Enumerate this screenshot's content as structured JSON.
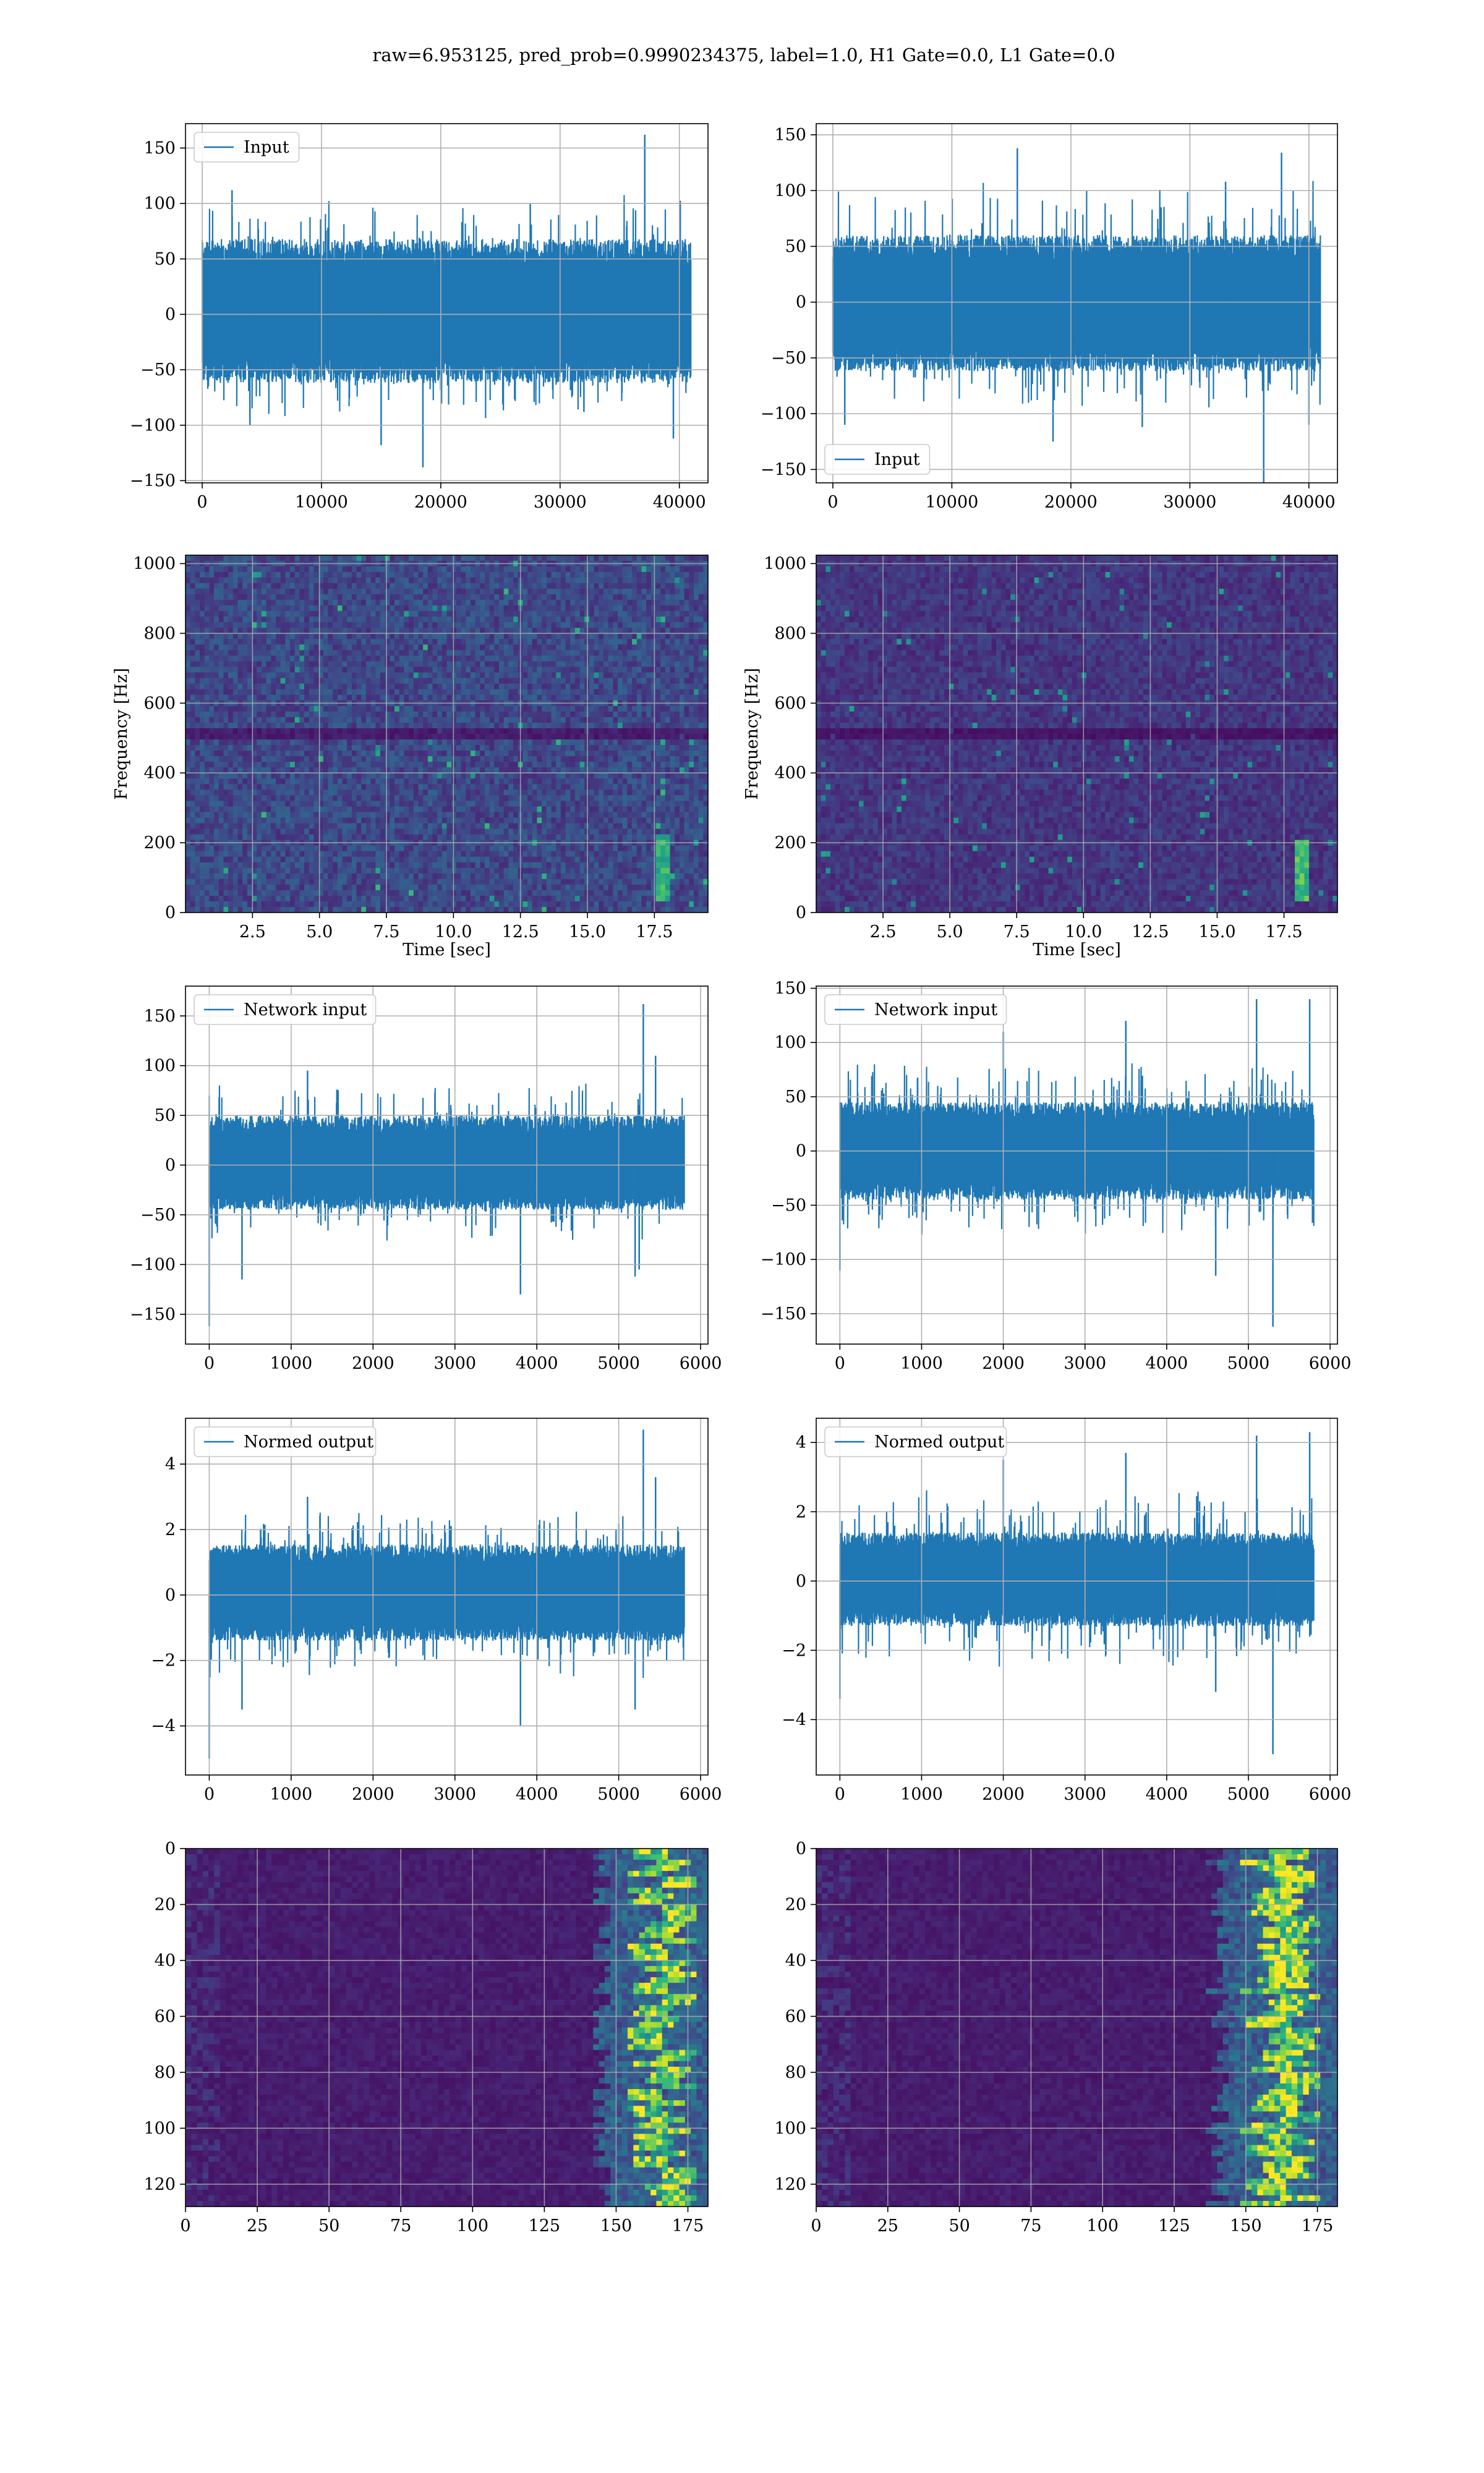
{
  "figure": {
    "title": "raw=6.953125, pred_prob=0.9990234375, label=1.0, H1 Gate=0.0, L1 Gate=0.0"
  },
  "style": {
    "line_color": "#1f77b4",
    "grid_color": "#b0b0b0",
    "colormap": "viridis",
    "axes_edge": "#000000"
  },
  "chart_data": [
    {
      "id": "r1c1",
      "type": "line",
      "title": "",
      "xlabel": "",
      "ylabel": "",
      "legend": "upper left",
      "grid": true,
      "xlim": [
        -1400,
        42400
      ],
      "ylim": [
        -152,
        172
      ],
      "xticks": [
        0,
        10000,
        20000,
        30000,
        40000
      ],
      "yticks": [
        -150,
        -100,
        -50,
        0,
        50,
        100,
        150
      ],
      "series": [
        {
          "name": "Input",
          "x_range": [
            0,
            40960
          ],
          "envelope": {
            "low": -62,
            "high": 68,
            "spike_low": -100,
            "spike_high": 112
          },
          "spikes": [
            [
              2500,
              112
            ],
            [
              4000,
              -100
            ],
            [
              15000,
              -118
            ],
            [
              18500,
              -138
            ],
            [
              27500,
              100
            ],
            [
              32000,
              -88
            ],
            [
              37100,
              162
            ],
            [
              39500,
              -112
            ]
          ]
        }
      ]
    },
    {
      "id": "r1c2",
      "type": "line",
      "title": "",
      "xlabel": "",
      "ylabel": "",
      "legend": "lower left",
      "grid": true,
      "xlim": [
        -1400,
        42400
      ],
      "ylim": [
        -162,
        160
      ],
      "xticks": [
        0,
        10000,
        20000,
        30000,
        40000
      ],
      "yticks": [
        -150,
        -100,
        -50,
        0,
        50,
        100,
        150
      ],
      "series": [
        {
          "name": "Input",
          "x_range": [
            0,
            40960
          ],
          "envelope": {
            "low": -62,
            "high": 60,
            "spike_low": -100,
            "spike_high": 115
          },
          "spikes": [
            [
              1000,
              -110
            ],
            [
              15500,
              138
            ],
            [
              18500,
              -125
            ],
            [
              26000,
              -112
            ],
            [
              33000,
              108
            ],
            [
              36200,
              -162
            ],
            [
              37700,
              134
            ],
            [
              40000,
              -110
            ]
          ]
        }
      ]
    },
    {
      "id": "r2c1",
      "type": "heatmap",
      "title": "",
      "xlabel": "Time [sec]",
      "ylabel": "Frequency [Hz]",
      "grid": true,
      "colormap": "viridis",
      "xlim": [
        0,
        19.5
      ],
      "ylim": [
        0,
        1024
      ],
      "xticks": [
        2.5,
        5.0,
        7.5,
        10.0,
        12.5,
        15.0,
        17.5
      ],
      "xtick_labels": [
        "2.5",
        "5.0",
        "7.5",
        "10.0",
        "12.5",
        "15.0",
        "17.5"
      ],
      "yticks": [
        0,
        200,
        400,
        600,
        800,
        1000
      ],
      "features": {
        "base_level": 0.12,
        "noise": 0.2,
        "dark_band_hz": [
          495,
          525
        ],
        "bright_track": {
          "t": 17.8,
          "f_range": [
            40,
            230
          ],
          "level": 0.75
        }
      }
    },
    {
      "id": "r2c2",
      "type": "heatmap",
      "title": "",
      "xlabel": "Time [sec]",
      "ylabel": "Frequency [Hz]",
      "grid": true,
      "colormap": "viridis",
      "xlim": [
        0,
        19.5
      ],
      "ylim": [
        0,
        1024
      ],
      "xticks": [
        2.5,
        5.0,
        7.5,
        10.0,
        12.5,
        15.0,
        17.5
      ],
      "xtick_labels": [
        "2.5",
        "5.0",
        "7.5",
        "10.0",
        "12.5",
        "15.0",
        "17.5"
      ],
      "yticks": [
        0,
        200,
        400,
        600,
        800,
        1000
      ],
      "features": {
        "base_level": 0.09,
        "noise": 0.14,
        "dark_band_hz": [
          495,
          525
        ],
        "bright_track": {
          "t": 18.2,
          "f_range": [
            30,
            210
          ],
          "level": 0.8
        }
      }
    },
    {
      "id": "r3c1",
      "type": "line",
      "title": "",
      "xlabel": "",
      "ylabel": "",
      "legend": "upper left",
      "grid": true,
      "xlim": [
        -290,
        6090
      ],
      "ylim": [
        -180,
        180
      ],
      "xticks": [
        0,
        1000,
        2000,
        3000,
        4000,
        5000,
        6000
      ],
      "yticks": [
        -150,
        -100,
        -50,
        0,
        50,
        100,
        150
      ],
      "series": [
        {
          "name": "Network input",
          "x_range": [
            0,
            5800
          ],
          "envelope": {
            "low": -45,
            "high": 50,
            "spike_low": -80,
            "spike_high": 85
          },
          "spikes": [
            [
              0,
              -162
            ],
            [
              400,
              -115
            ],
            [
              1200,
              95
            ],
            [
              3800,
              -130
            ],
            [
              5200,
              -112
            ],
            [
              5250,
              -105
            ],
            [
              5300,
              162
            ],
            [
              5450,
              110
            ]
          ]
        }
      ]
    },
    {
      "id": "r3c2",
      "type": "line",
      "title": "",
      "xlabel": "",
      "ylabel": "",
      "legend": "upper left",
      "grid": true,
      "xlim": [
        -290,
        6090
      ],
      "ylim": [
        -178,
        152
      ],
      "xticks": [
        0,
        1000,
        2000,
        3000,
        4000,
        5000,
        6000
      ],
      "yticks": [
        -150,
        -100,
        -50,
        0,
        50,
        100,
        150
      ],
      "series": [
        {
          "name": "Network input",
          "x_range": [
            0,
            5800
          ],
          "envelope": {
            "low": -45,
            "high": 45,
            "spike_low": -80,
            "spike_high": 85
          },
          "spikes": [
            [
              0,
              -110
            ],
            [
              2000,
              110
            ],
            [
              3500,
              120
            ],
            [
              4600,
              -115
            ],
            [
              5100,
              140
            ],
            [
              5300,
              -162
            ],
            [
              5750,
              140
            ]
          ]
        }
      ]
    },
    {
      "id": "r4c1",
      "type": "line",
      "title": "",
      "xlabel": "",
      "ylabel": "",
      "legend": "upper left",
      "grid": true,
      "xlim": [
        -290,
        6090
      ],
      "ylim": [
        -5.5,
        5.4
      ],
      "xticks": [
        0,
        1000,
        2000,
        3000,
        4000,
        5000,
        6000
      ],
      "yticks": [
        -4,
        -2,
        0,
        2,
        4
      ],
      "series": [
        {
          "name": "Normed output",
          "x_range": [
            0,
            5800
          ],
          "envelope": {
            "low": -1.4,
            "high": 1.55,
            "spike_low": -2.6,
            "spike_high": 2.7
          },
          "spikes": [
            [
              0,
              -5.0
            ],
            [
              400,
              -3.5
            ],
            [
              1200,
              3.0
            ],
            [
              3800,
              -4.0
            ],
            [
              5200,
              -3.5
            ],
            [
              5300,
              5.05
            ],
            [
              5450,
              3.6
            ]
          ]
        }
      ]
    },
    {
      "id": "r4c2",
      "type": "line",
      "title": "",
      "xlabel": "",
      "ylabel": "",
      "legend": "upper left",
      "grid": true,
      "xlim": [
        -290,
        6090
      ],
      "ylim": [
        -5.6,
        4.7
      ],
      "xticks": [
        0,
        1000,
        2000,
        3000,
        4000,
        5000,
        6000
      ],
      "yticks": [
        -4,
        -2,
        0,
        2,
        4
      ],
      "series": [
        {
          "name": "Normed output",
          "x_range": [
            0,
            5800
          ],
          "envelope": {
            "low": -1.3,
            "high": 1.4,
            "spike_low": -2.6,
            "spike_high": 2.7
          },
          "spikes": [
            [
              0,
              -3.4
            ],
            [
              2000,
              3.5
            ],
            [
              3500,
              3.7
            ],
            [
              4600,
              -3.2
            ],
            [
              5100,
              4.2
            ],
            [
              5300,
              -5.0
            ],
            [
              5750,
              4.3
            ]
          ]
        }
      ]
    },
    {
      "id": "r5c1",
      "type": "heatmap",
      "title": "",
      "xlabel": "",
      "ylabel": "",
      "grid": true,
      "colormap": "viridis",
      "xlim": [
        0,
        182
      ],
      "ylim": [
        128,
        0
      ],
      "xticks": [
        0,
        25,
        50,
        75,
        100,
        125,
        150,
        175
      ],
      "yticks": [
        0,
        20,
        40,
        60,
        80,
        100,
        120
      ],
      "features": {
        "base_level": 0.05,
        "active_cols": [
          145,
          182
        ],
        "hot_cols": [
          160,
          172
        ],
        "peak_level": 0.85
      }
    },
    {
      "id": "r5c2",
      "type": "heatmap",
      "title": "",
      "xlabel": "",
      "ylabel": "",
      "grid": true,
      "colormap": "viridis",
      "xlim": [
        0,
        182
      ],
      "ylim": [
        128,
        0
      ],
      "xticks": [
        0,
        25,
        50,
        75,
        100,
        125,
        150,
        175
      ],
      "yticks": [
        0,
        20,
        40,
        60,
        80,
        100,
        120
      ],
      "features": {
        "base_level": 0.05,
        "active_cols": [
          140,
          182
        ],
        "hot_cols": [
          155,
          170
        ],
        "peak_level": 0.9
      }
    }
  ]
}
